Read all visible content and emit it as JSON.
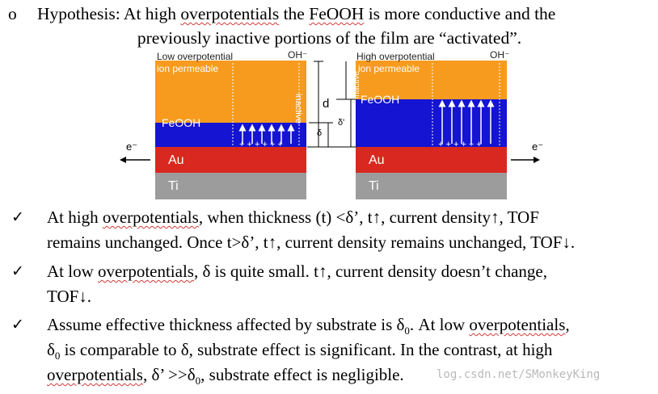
{
  "hypothesis": {
    "bullet": "o",
    "line1_a": "Hypothesis: At high ",
    "line1_b": "overpotentials",
    "line1_c": " the ",
    "line1_d": "FeOOH",
    "line1_e": " is more conductive and the",
    "line2": "previously inactive portions of the film are “activated”."
  },
  "diagram": {
    "left": {
      "title": "Low overpotential",
      "oh": "OH⁻",
      "ion": "ion permeable",
      "feooh": "FeOOH",
      "au": "Au",
      "ti": "Ti",
      "electron": "e⁻",
      "inactive": "inactive",
      "d": "d",
      "delta": "δ"
    },
    "right": {
      "title": "High overpotential",
      "oh": "OH⁻",
      "ion": "ion permeable",
      "feooh": "FeOOH",
      "au": "Au",
      "ti": "Ti",
      "electron": "e⁻",
      "inactive": "inactive",
      "delta": "δ'"
    },
    "colors": {
      "orange": "#f79b1e",
      "blue": "#1414d2",
      "red": "#d8281f",
      "gray": "#9c9c9c"
    }
  },
  "bullets": [
    {
      "l1a": "At high ",
      "l1b": "overpotentials",
      "l1c": ", when thickness (t) <δ’, t↑, current density↑, TOF",
      "l2": "remains unchanged. Once t>δ’, t↑, current density remains unchanged, TOF↓."
    },
    {
      "l1a": "At low ",
      "l1b": "overpotentials",
      "l1c": ", δ is quite small. t↑, current density doesn’t change,",
      "l2": "TOF↓."
    },
    {
      "l1a": "Assume effective thickness affected by substrate is δ",
      "l1sub": "0",
      "l1b": ". At low ",
      "l1c": "overpotentials",
      "l1d": ",",
      "l2a": "δ",
      "l2sub": "0",
      "l2b": " is comparable to δ, substrate effect is significant. In the contrast, at high",
      "l3a": "overpotentials",
      "l3b": ", δ’ >>δ",
      "l3sub": "0",
      "l3c": ", substrate effect is negligible."
    }
  ],
  "tick": "✓",
  "watermark": "log.csdn.net/SMonkeyKing"
}
